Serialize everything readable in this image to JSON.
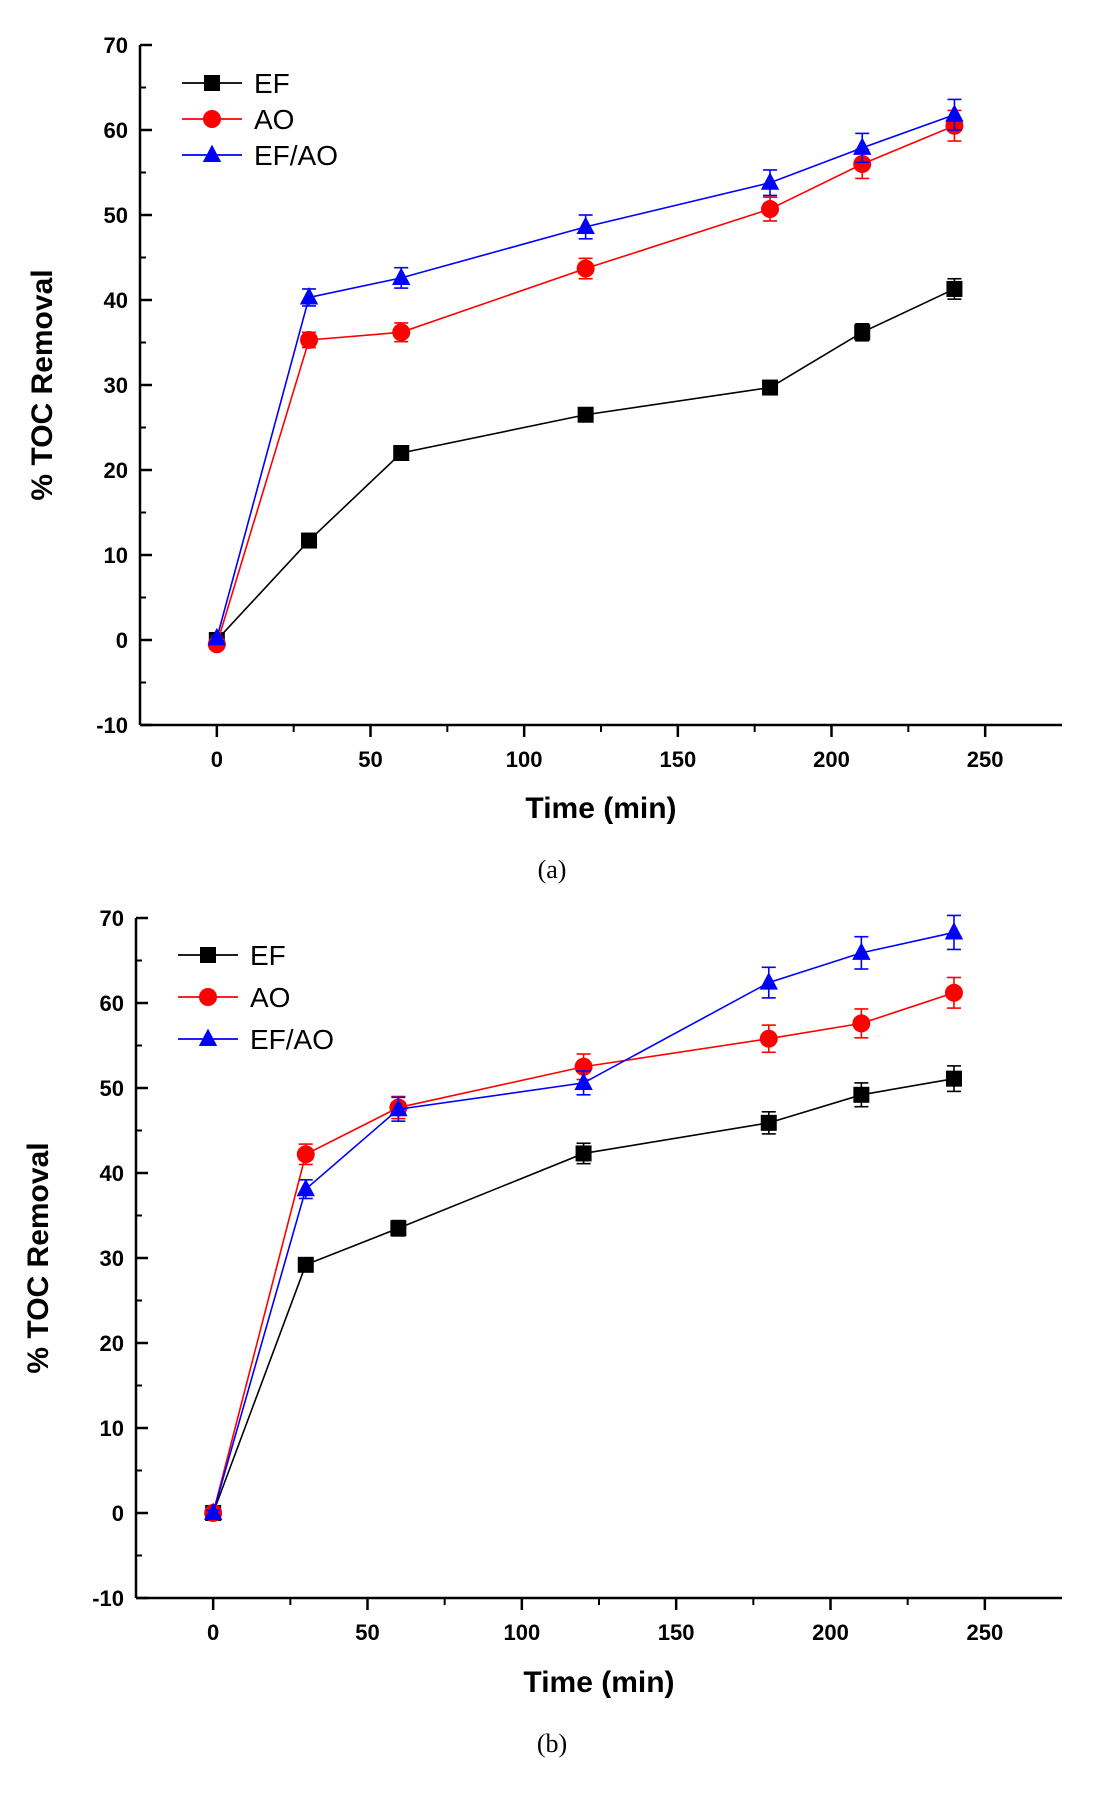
{
  "chart_data": [
    {
      "type": "line",
      "panel_label": "(a)",
      "xlabel": "Time (min)",
      "ylabel": "% TOC Removal",
      "xlim": [
        -25,
        275
      ],
      "ylim": [
        -10,
        70
      ],
      "xticks": [
        0,
        50,
        100,
        150,
        200,
        250
      ],
      "yticks": [
        -10,
        0,
        10,
        20,
        30,
        40,
        50,
        60,
        70
      ],
      "legend_position": "top-left",
      "grid": false,
      "x": [
        0,
        30,
        60,
        120,
        180,
        210,
        240
      ],
      "series": [
        {
          "name": "EF",
          "color": "#000000",
          "marker": "square",
          "values": [
            0,
            11.7,
            22,
            26.5,
            29.7,
            36.2,
            41.3
          ],
          "errors": [
            0.4,
            0.6,
            0.6,
            0.6,
            0.7,
            1.0,
            1.2
          ]
        },
        {
          "name": "AO",
          "color": "#ff0000",
          "marker": "circle",
          "values": [
            -0.5,
            35.3,
            36.2,
            43.7,
            50.7,
            56,
            60.5
          ],
          "errors": [
            0.4,
            0.9,
            1.1,
            1.2,
            1.4,
            1.7,
            1.8
          ]
        },
        {
          "name": "EF/AO",
          "color": "#0000ff",
          "marker": "triangle",
          "values": [
            0.2,
            40.3,
            42.6,
            48.6,
            53.8,
            57.9,
            61.8
          ],
          "errors": [
            0.3,
            1.0,
            1.2,
            1.4,
            1.5,
            1.7,
            1.8
          ]
        }
      ]
    },
    {
      "type": "line",
      "panel_label": "(b)",
      "xlabel": "Time (min)",
      "ylabel": "% TOC Removal",
      "xlim": [
        -25,
        275
      ],
      "ylim": [
        -10,
        70
      ],
      "xticks": [
        0,
        50,
        100,
        150,
        200,
        250
      ],
      "yticks": [
        -10,
        0,
        10,
        20,
        30,
        40,
        50,
        60,
        70
      ],
      "legend_position": "top-left",
      "grid": false,
      "x": [
        0,
        30,
        60,
        120,
        180,
        210,
        240
      ],
      "series": [
        {
          "name": "EF",
          "color": "#000000",
          "marker": "square",
          "values": [
            0,
            29.2,
            33.5,
            42.3,
            45.9,
            49.2,
            51.1
          ],
          "errors": [
            0.3,
            0.8,
            0.9,
            1.2,
            1.3,
            1.4,
            1.5
          ]
        },
        {
          "name": "AO",
          "color": "#ff0000",
          "marker": "circle",
          "values": [
            0,
            42.2,
            47.7,
            52.5,
            55.8,
            57.6,
            61.2
          ],
          "errors": [
            0.3,
            1.2,
            1.3,
            1.5,
            1.6,
            1.7,
            1.8
          ]
        },
        {
          "name": "EF/AO",
          "color": "#0000ff",
          "marker": "triangle",
          "values": [
            0,
            38.1,
            47.5,
            50.6,
            62.4,
            65.9,
            68.3
          ],
          "errors": [
            0.3,
            1.1,
            1.4,
            1.4,
            1.8,
            1.9,
            2.0
          ]
        }
      ]
    }
  ]
}
